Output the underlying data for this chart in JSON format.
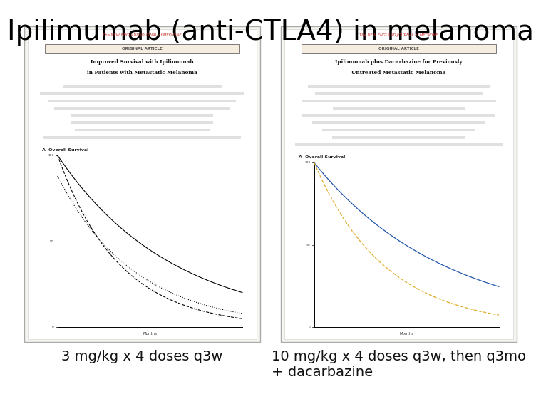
{
  "title": "Ipilimumab (anti-CTLA4) in melanoma",
  "title_fontsize": 28,
  "title_color": "#000000",
  "background_color": "#ffffff",
  "left_caption": "3 mg/kg x 4 doses q3w",
  "right_caption_line1": "10 mg/kg x 4 doses q3w, then q3mo",
  "right_caption_line2": "+ dacarbazine",
  "caption_fontsize": 14
}
